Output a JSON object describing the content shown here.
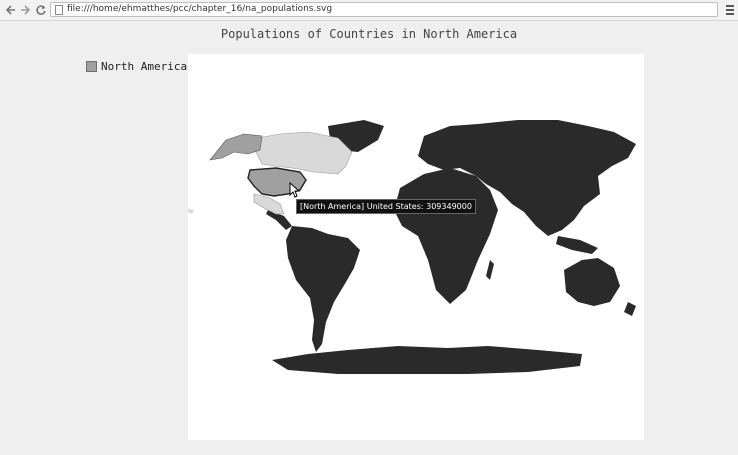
{
  "browser": {
    "url": "file:///home/ehmatthes/pcc/chapter_16/na_populations.svg",
    "back_icon": "arrow-left-icon",
    "forward_icon": "arrow-right-icon",
    "reload_icon": "reload-icon",
    "menu_icon": "hamburger-menu-icon"
  },
  "chart": {
    "title": "Populations of Countries in North America",
    "legend": [
      {
        "label": "North America",
        "color": "#a0a0a0"
      }
    ],
    "tooltip": {
      "series": "[North America]",
      "text": "United States: 309349000"
    },
    "colors": {
      "highlighted": "#a0a0a0",
      "north_america": "#d9d9d9",
      "other": "#2a2a2a",
      "background": "#ffffff"
    }
  },
  "chart_data": {
    "type": "map",
    "title": "Populations of Countries in North America",
    "series": [
      {
        "name": "North America",
        "values": [
          {
            "country": "United States",
            "value": 309349000
          }
        ]
      }
    ]
  }
}
